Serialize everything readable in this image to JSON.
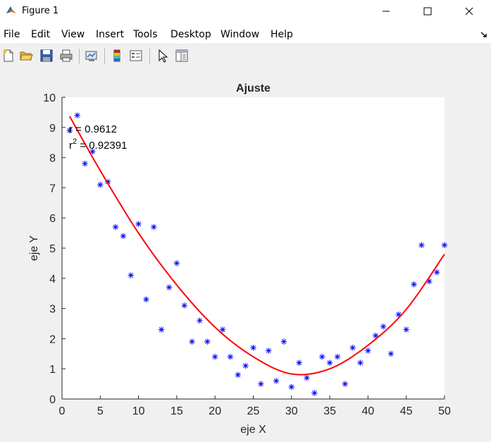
{
  "window": {
    "title": "Figure 1"
  },
  "menu": [
    "File",
    "Edit",
    "View",
    "Insert",
    "Tools",
    "Desktop",
    "Window",
    "Help"
  ],
  "toolbar_icons": [
    "new-figure-icon",
    "open-file-icon",
    "save-icon",
    "print-icon",
    "link-plot-icon",
    "colorbar-icon",
    "legend-icon",
    "edit-plot-icon",
    "property-editor-icon"
  ],
  "chart_data": {
    "type": "scatter",
    "title": "Ajuste",
    "xlabel": "eje X",
    "ylabel": "eje Y",
    "xlim": [
      0,
      50
    ],
    "ylim": [
      0,
      10
    ],
    "xticks": [
      0,
      5,
      10,
      15,
      20,
      25,
      30,
      35,
      40,
      45,
      50
    ],
    "yticks": [
      0,
      1,
      2,
      3,
      4,
      5,
      6,
      7,
      8,
      9,
      10
    ],
    "grid": false,
    "annotations": {
      "r_text": "r = 0.9612",
      "r2_base": "r",
      "r2_exp": "2",
      "r2_value": " = 0.92391"
    },
    "scatter": {
      "marker": "*",
      "color": "#0000ff",
      "x": [
        1,
        2,
        3,
        4,
        5,
        6,
        7,
        8,
        9,
        10,
        11,
        12,
        13,
        14,
        15,
        16,
        17,
        18,
        19,
        20,
        21,
        22,
        23,
        24,
        25,
        26,
        27,
        28,
        29,
        30,
        31,
        32,
        33,
        34,
        35,
        36,
        37,
        38,
        39,
        40,
        41,
        42,
        43,
        44,
        45,
        46,
        47,
        48,
        49,
        50
      ],
      "y": [
        8.9,
        9.4,
        7.8,
        8.2,
        7.1,
        7.2,
        5.7,
        5.4,
        4.1,
        5.8,
        3.3,
        5.7,
        2.3,
        3.7,
        4.5,
        3.1,
        1.9,
        2.6,
        1.9,
        1.4,
        2.3,
        1.4,
        0.8,
        1.1,
        1.7,
        0.5,
        1.6,
        0.6,
        1.9,
        0.4,
        1.2,
        0.7,
        0.2,
        1.4,
        1.2,
        1.4,
        0.5,
        1.7,
        1.2,
        1.6,
        2.1,
        2.4,
        1.5,
        2.8,
        2.3,
        3.8,
        5.1,
        3.9,
        4.2,
        5.1
      ]
    },
    "fit_line": {
      "type": "quadratic",
      "color": "#ff0000",
      "x": [
        1,
        5,
        10,
        15,
        20,
        25,
        30,
        35,
        40,
        45,
        50
      ],
      "y": [
        9.37,
        7.57,
        5.5,
        3.78,
        2.38,
        1.4,
        0.83,
        1.0,
        1.78,
        2.97,
        4.8
      ]
    }
  },
  "colors": {
    "figure_bg": "#f0f0f0",
    "axes_bg": "#ffffff",
    "marker": "#0000ff",
    "fit": "#ff0000"
  }
}
